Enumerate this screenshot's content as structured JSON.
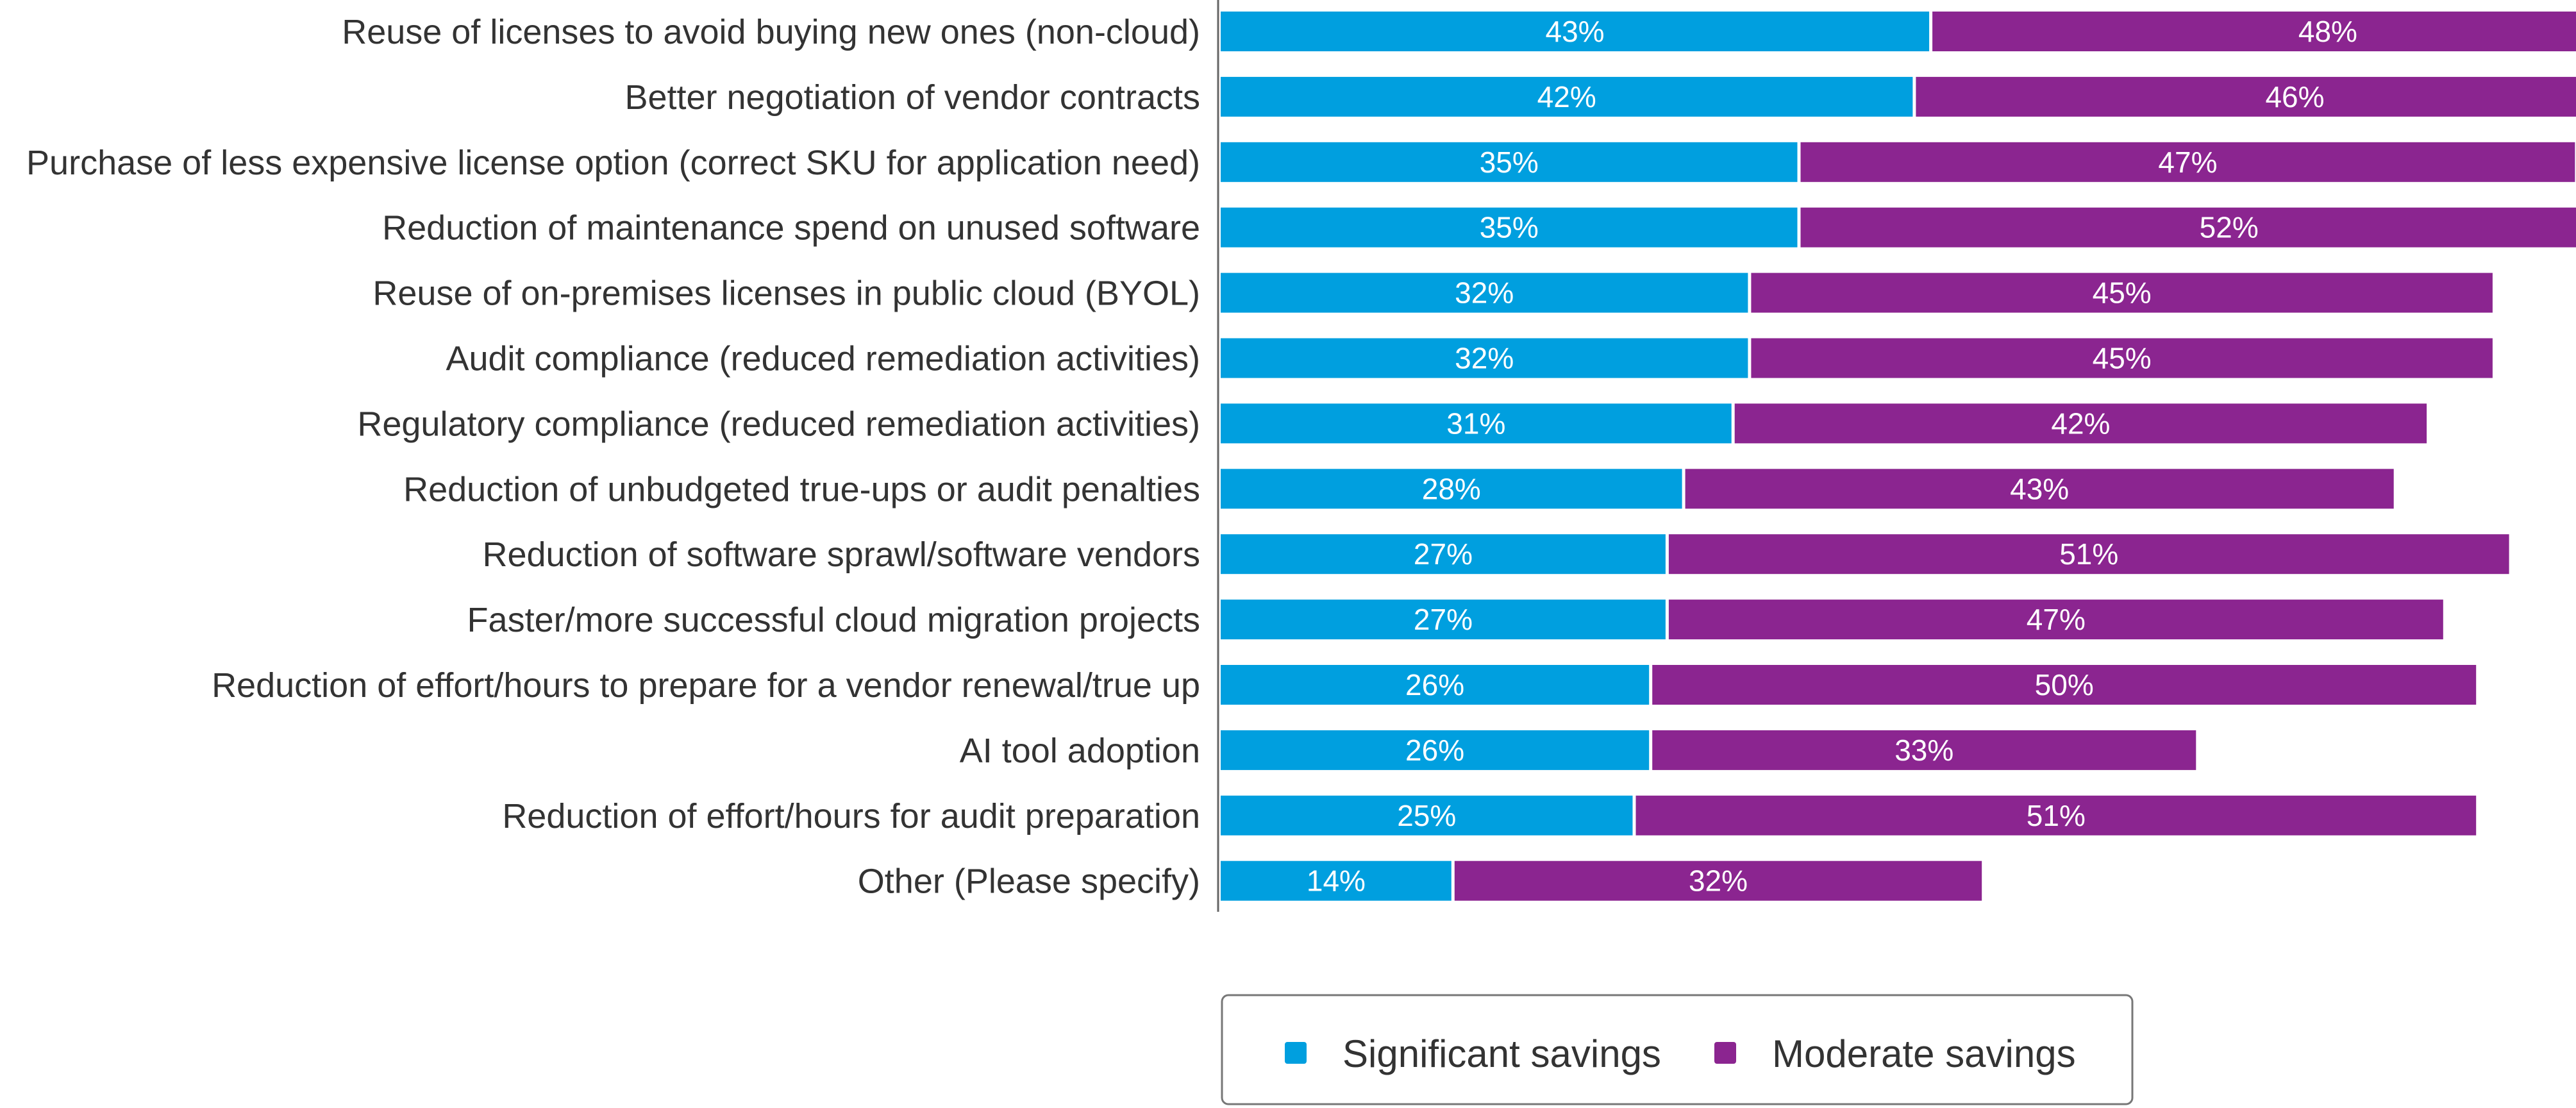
{
  "chart_data": {
    "type": "bar",
    "orientation": "horizontal",
    "stacked": true,
    "categories": [
      "Reuse of licenses to avoid buying new ones (non-cloud)",
      "Better negotiation of vendor contracts",
      "Purchase of less expensive license option (correct SKU for application need)",
      "Reduction of maintenance spend on unused software",
      "Reuse of on-premises licenses in public cloud (BYOL)",
      "Audit compliance (reduced remediation activities)",
      "Regulatory compliance (reduced remediation activities)",
      "Reduction of unbudgeted true-ups or audit penalties",
      "Reduction of software sprawl/software vendors",
      "Faster/more successful cloud migration projects",
      "Reduction of effort/hours to prepare for a vendor renewal/true up",
      "AI tool adoption",
      "Reduction of effort/hours for audit preparation",
      "Other (Please specify)"
    ],
    "series": [
      {
        "name": "Significant savings",
        "color": "#009fdf",
        "values": [
          43,
          42,
          35,
          35,
          32,
          32,
          31,
          28,
          27,
          27,
          26,
          26,
          25,
          14
        ]
      },
      {
        "name": "Moderate savings",
        "color": "#8b2590",
        "values": [
          48,
          46,
          47,
          52,
          45,
          45,
          42,
          43,
          51,
          47,
          50,
          33,
          51,
          32
        ]
      }
    ],
    "value_suffix": "%",
    "xlim": [
      0,
      91
    ],
    "grid": false,
    "legend_position": "bottom"
  }
}
